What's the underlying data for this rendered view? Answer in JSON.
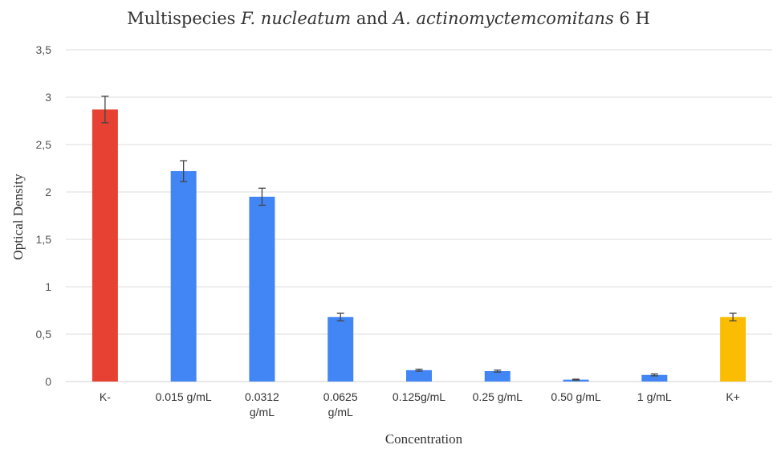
{
  "chart_data": {
    "type": "bar",
    "title_parts": [
      {
        "text": "Multispecies ",
        "italic": false
      },
      {
        "text": "F. nucleatum",
        "italic": true
      },
      {
        "text": " and ",
        "italic": false
      },
      {
        "text": "A. actinomyctemcomitans",
        "italic": true
      },
      {
        "text": " 6 H",
        "italic": false
      }
    ],
    "xlabel": "Concentration",
    "ylabel": "Optical Density",
    "ylim": [
      0,
      3.5
    ],
    "yticks": [
      0,
      0.5,
      1,
      1.5,
      2,
      2.5,
      3,
      3.5
    ],
    "ytick_labels": [
      "0",
      "0,5",
      "1",
      "1,5",
      "2",
      "2,5",
      "3",
      "3,5"
    ],
    "categories": [
      [
        "K-"
      ],
      [
        "0.015 g/mL"
      ],
      [
        "0.0312",
        "g/mL"
      ],
      [
        "0.0625",
        "g/mL"
      ],
      [
        "0.125g/mL"
      ],
      [
        "0.25 g/mL"
      ],
      [
        "0.50 g/mL"
      ],
      [
        "1 g/mL"
      ],
      [
        "K+"
      ]
    ],
    "values": [
      2.87,
      2.22,
      1.95,
      0.68,
      0.12,
      0.11,
      0.02,
      0.07,
      0.68
    ],
    "errors": [
      0.14,
      0.11,
      0.09,
      0.04,
      0.01,
      0.01,
      0.005,
      0.01,
      0.04
    ],
    "colors": [
      "#e64132",
      "#4285f4",
      "#4285f4",
      "#4285f4",
      "#4285f4",
      "#4285f4",
      "#4285f4",
      "#4285f4",
      "#fbbc04"
    ],
    "grid": true,
    "legend": "none"
  }
}
